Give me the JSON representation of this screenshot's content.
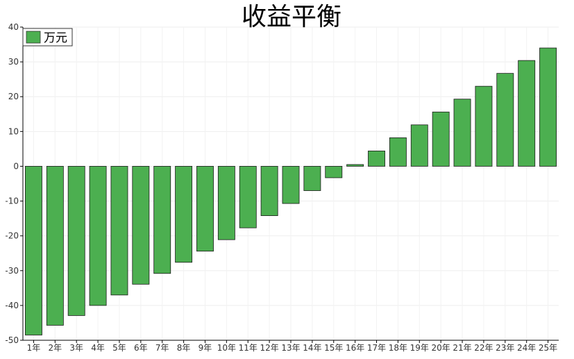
{
  "chart_data": {
    "type": "bar",
    "title": "收益平衡",
    "categories": [
      "1年",
      "2年",
      "3年",
      "4年",
      "5年",
      "6年",
      "7年",
      "8年",
      "9年",
      "10年",
      "11年",
      "12年",
      "13年",
      "14年",
      "15年",
      "16年",
      "17年",
      "18年",
      "19年",
      "20年",
      "21年",
      "22年",
      "23年",
      "24年",
      "25年"
    ],
    "series": [
      {
        "name": "万元",
        "color": "#4caf50",
        "values": [
          -48.5,
          -45.7,
          -42.9,
          -40.0,
          -37.0,
          -33.9,
          -30.8,
          -27.6,
          -24.4,
          -21.1,
          -17.7,
          -14.2,
          -10.7,
          -7.0,
          -3.3,
          0.5,
          4.4,
          8.2,
          11.9,
          15.6,
          19.3,
          23.0,
          26.7,
          30.4,
          34.0
        ]
      }
    ],
    "ylim": [
      -50,
      40
    ],
    "yticks": [
      "40",
      "30",
      "20",
      "10",
      "0",
      "-10",
      "-20",
      "-30",
      "-40",
      "-50"
    ],
    "ytick_values": [
      40,
      30,
      20,
      10,
      0,
      -10,
      -20,
      -30,
      -40,
      -50
    ],
    "grid": true,
    "legend_position": "top-left",
    "xlabel": "",
    "ylabel": ""
  }
}
